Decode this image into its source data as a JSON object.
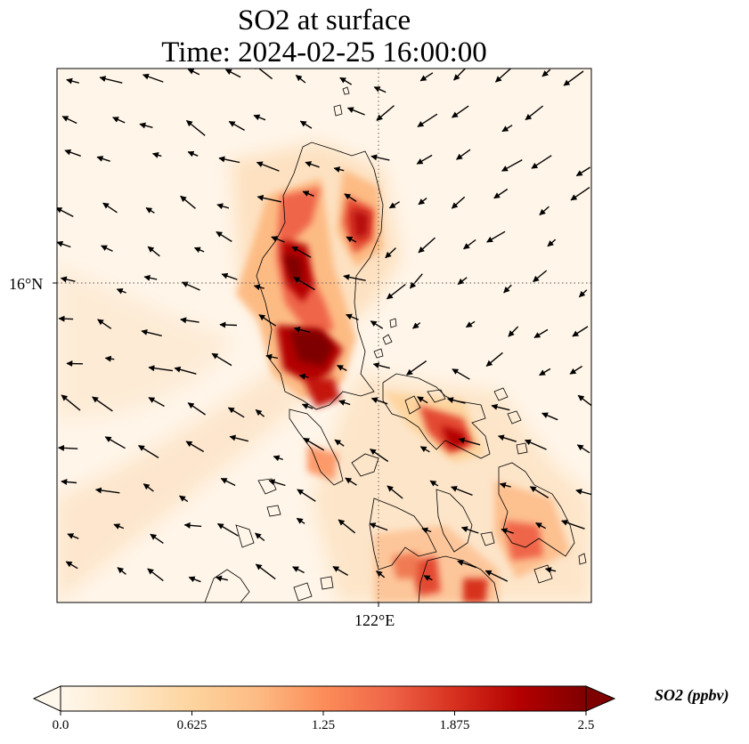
{
  "title": {
    "line1": "SO2 at surface",
    "line2": "Time: 2024-02-25 16:00:00"
  },
  "map": {
    "lat_tick_label": "16°N",
    "lon_tick_label": "122°E",
    "colormap": "OrRd",
    "gridlines": "dotted"
  },
  "colorbar": {
    "label": "SO2 (ppbv)",
    "min": 0.0,
    "max": 2.5,
    "extend": "both",
    "ticks": [
      "0.0",
      "0.625",
      "1.25",
      "1.875",
      "2.5"
    ],
    "colors": [
      "#fff7ec",
      "#fee8c8",
      "#fdd49e",
      "#fdbb84",
      "#fc8d59",
      "#ef6548",
      "#d7301f",
      "#b30000",
      "#7f0000"
    ]
  }
}
